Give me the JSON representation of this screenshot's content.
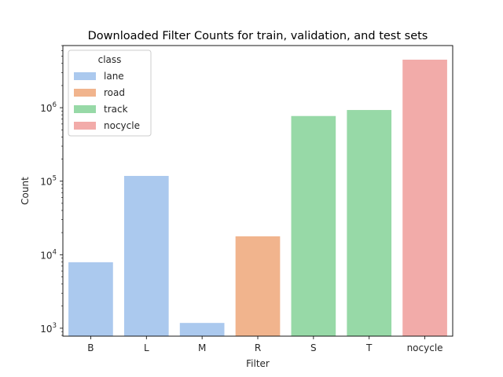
{
  "chart_data": {
    "type": "bar",
    "title": "Downloaded Filter Counts for train, validation, and test sets",
    "xlabel": "Filter",
    "ylabel": "Count",
    "yscale": "log",
    "ylim": [
      780,
      7000000
    ],
    "yticks": [
      1000,
      10000,
      100000,
      1000000
    ],
    "ytick_labels": [
      {
        "base": "10",
        "exp": "3"
      },
      {
        "base": "10",
        "exp": "4"
      },
      {
        "base": "10",
        "exp": "5"
      },
      {
        "base": "10",
        "exp": "6"
      }
    ],
    "categories": [
      "B",
      "L",
      "M",
      "R",
      "S",
      "T",
      "nocycle"
    ],
    "values": [
      7900,
      118000,
      1180,
      17800,
      770000,
      930000,
      4500000
    ],
    "bar_classes": [
      "lane",
      "lane",
      "lane",
      "road",
      "track",
      "track",
      "nocycle"
    ],
    "grid": false,
    "legend": {
      "title": "class",
      "placement": "top-left",
      "entries": [
        {
          "label": "lane",
          "color": "#abc9ee"
        },
        {
          "label": "road",
          "color": "#f1b48d"
        },
        {
          "label": "track",
          "color": "#97d9a7"
        },
        {
          "label": "nocycle",
          "color": "#f2aba9"
        }
      ]
    }
  }
}
